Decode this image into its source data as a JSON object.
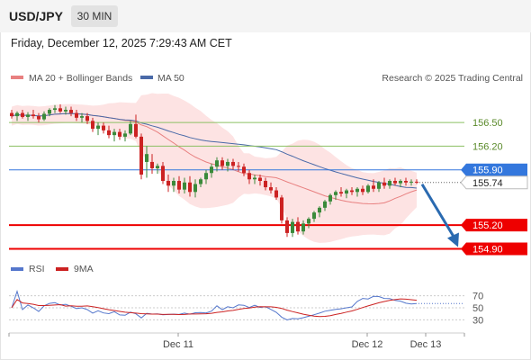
{
  "header": {
    "symbol": "USD/JPY",
    "timeframe": "30 MIN",
    "datetime": "Friday, December 12, 2025 7:29:43 AM CET"
  },
  "legend": {
    "ma20_label": "MA 20 + Bollinger Bands",
    "ma50_label": "MA 50",
    "credit": "Research © 2025 Trading Central",
    "rsi_label": "RSI",
    "ma9_label": "9MA"
  },
  "colors": {
    "up_candle": "#3a8a3a",
    "down_candle": "#cc2222",
    "ma20": "#e88080",
    "bollinger_fill": "#fde3e3",
    "ma50": "#4a6aa8",
    "level_green": "#8cc063",
    "level_blue": "#3377dd",
    "level_red": "#ee0000",
    "rsi": "#5577cc",
    "rsi_ma": "#cc2222"
  },
  "chart_data": [
    {
      "type": "candlestick",
      "x_ticks": [
        "Dec 11",
        "Dec 12",
        "Dec 13"
      ],
      "ylim": [
        154.7,
        156.9
      ],
      "last_price": 155.74,
      "levels": [
        {
          "value": 156.5,
          "label": "156.50",
          "kind": "resistance"
        },
        {
          "value": 156.2,
          "label": "156.20",
          "kind": "resistance"
        },
        {
          "value": 155.9,
          "label": "155.90",
          "kind": "pivot"
        },
        {
          "value": 155.2,
          "label": "155.20",
          "kind": "support"
        },
        {
          "value": 154.9,
          "label": "154.90",
          "kind": "support"
        }
      ],
      "candles": [
        [
          156.62,
          156.66,
          156.55,
          156.58
        ],
        [
          156.58,
          156.64,
          156.52,
          156.62
        ],
        [
          156.62,
          156.66,
          156.55,
          156.57
        ],
        [
          156.57,
          156.63,
          156.52,
          156.6
        ],
        [
          156.6,
          156.66,
          156.55,
          156.58
        ],
        [
          156.58,
          156.62,
          156.5,
          156.54
        ],
        [
          156.54,
          156.64,
          156.52,
          156.61
        ],
        [
          156.61,
          156.68,
          156.58,
          156.66
        ],
        [
          156.66,
          156.72,
          156.62,
          156.68
        ],
        [
          156.68,
          156.73,
          156.62,
          156.64
        ],
        [
          156.64,
          156.7,
          156.6,
          156.66
        ],
        [
          156.66,
          156.7,
          156.58,
          156.62
        ],
        [
          156.62,
          156.66,
          156.52,
          156.56
        ],
        [
          156.56,
          156.62,
          156.5,
          156.58
        ],
        [
          156.58,
          156.62,
          156.48,
          156.52
        ],
        [
          156.52,
          156.56,
          156.38,
          156.42
        ],
        [
          156.42,
          156.5,
          156.34,
          156.46
        ],
        [
          156.46,
          156.5,
          156.36,
          156.4
        ],
        [
          156.4,
          156.46,
          156.3,
          156.34
        ],
        [
          156.34,
          156.42,
          156.26,
          156.38
        ],
        [
          156.38,
          156.42,
          156.28,
          156.32
        ],
        [
          156.32,
          156.4,
          156.26,
          156.36
        ],
        [
          156.36,
          156.52,
          156.34,
          156.48
        ],
        [
          156.48,
          156.6,
          156.3,
          156.32
        ],
        [
          156.32,
          156.36,
          155.78,
          155.84
        ],
        [
          156.0,
          156.2,
          155.8,
          156.1
        ],
        [
          156.0,
          156.1,
          155.85,
          155.92
        ],
        [
          155.92,
          155.98,
          155.85,
          155.95
        ],
        [
          155.95,
          156.0,
          155.72,
          155.76
        ],
        [
          155.76,
          155.84,
          155.62,
          155.7
        ],
        [
          155.7,
          155.8,
          155.62,
          155.76
        ],
        [
          155.76,
          155.82,
          155.6,
          155.65
        ],
        [
          155.65,
          155.8,
          155.6,
          155.74
        ],
        [
          155.74,
          155.82,
          155.56,
          155.62
        ],
        [
          155.62,
          155.78,
          155.55,
          155.72
        ],
        [
          155.72,
          155.8,
          155.68,
          155.78
        ],
        [
          155.78,
          155.9,
          155.72,
          155.86
        ],
        [
          155.86,
          155.98,
          155.8,
          155.94
        ],
        [
          155.94,
          156.06,
          155.88,
          156.02
        ],
        [
          156.02,
          156.06,
          155.9,
          155.95
        ],
        [
          155.95,
          156.04,
          155.88,
          156.0
        ],
        [
          156.0,
          156.04,
          155.9,
          155.95
        ],
        [
          155.95,
          156.0,
          155.88,
          155.94
        ],
        [
          155.94,
          155.98,
          155.82,
          155.86
        ],
        [
          155.86,
          155.9,
          155.72,
          155.78
        ],
        [
          155.78,
          155.84,
          155.72,
          155.8
        ],
        [
          155.8,
          155.84,
          155.7,
          155.76
        ],
        [
          155.76,
          155.8,
          155.64,
          155.68
        ],
        [
          155.68,
          155.74,
          155.6,
          155.64
        ],
        [
          155.64,
          155.68,
          155.52,
          155.55
        ],
        [
          155.55,
          155.58,
          155.22,
          155.26
        ],
        [
          155.26,
          155.3,
          155.05,
          155.1
        ],
        [
          155.1,
          155.28,
          155.05,
          155.24
        ],
        [
          155.24,
          155.3,
          155.08,
          155.12
        ],
        [
          155.12,
          155.26,
          155.08,
          155.22
        ],
        [
          155.22,
          155.3,
          155.16,
          155.28
        ],
        [
          155.28,
          155.38,
          155.24,
          155.36
        ],
        [
          155.36,
          155.44,
          155.3,
          155.42
        ],
        [
          155.42,
          155.52,
          155.38,
          155.5
        ],
        [
          155.5,
          155.6,
          155.46,
          155.58
        ],
        [
          155.58,
          155.64,
          155.52,
          155.62
        ],
        [
          155.62,
          155.68,
          155.56,
          155.6
        ],
        [
          155.6,
          155.66,
          155.54,
          155.64
        ],
        [
          155.64,
          155.68,
          155.58,
          155.62
        ],
        [
          155.62,
          155.68,
          155.56,
          155.66
        ],
        [
          155.66,
          155.7,
          155.58,
          155.62
        ],
        [
          155.62,
          155.72,
          155.6,
          155.7
        ],
        [
          155.7,
          155.78,
          155.62,
          155.66
        ],
        [
          155.66,
          155.76,
          155.62,
          155.74
        ],
        [
          155.74,
          155.8,
          155.66,
          155.7
        ],
        [
          155.7,
          155.78,
          155.66,
          155.76
        ],
        [
          155.76,
          155.8,
          155.7,
          155.73
        ],
        [
          155.73,
          155.78,
          155.68,
          155.76
        ],
        [
          155.76,
          155.8,
          155.7,
          155.74
        ],
        [
          155.74,
          155.78,
          155.7,
          155.75
        ],
        [
          155.75,
          155.78,
          155.72,
          155.74
        ]
      ]
    },
    {
      "type": "line",
      "name": "RSI",
      "y_ticks": [
        70,
        50,
        30
      ],
      "ylim": [
        20,
        80
      ]
    }
  ]
}
